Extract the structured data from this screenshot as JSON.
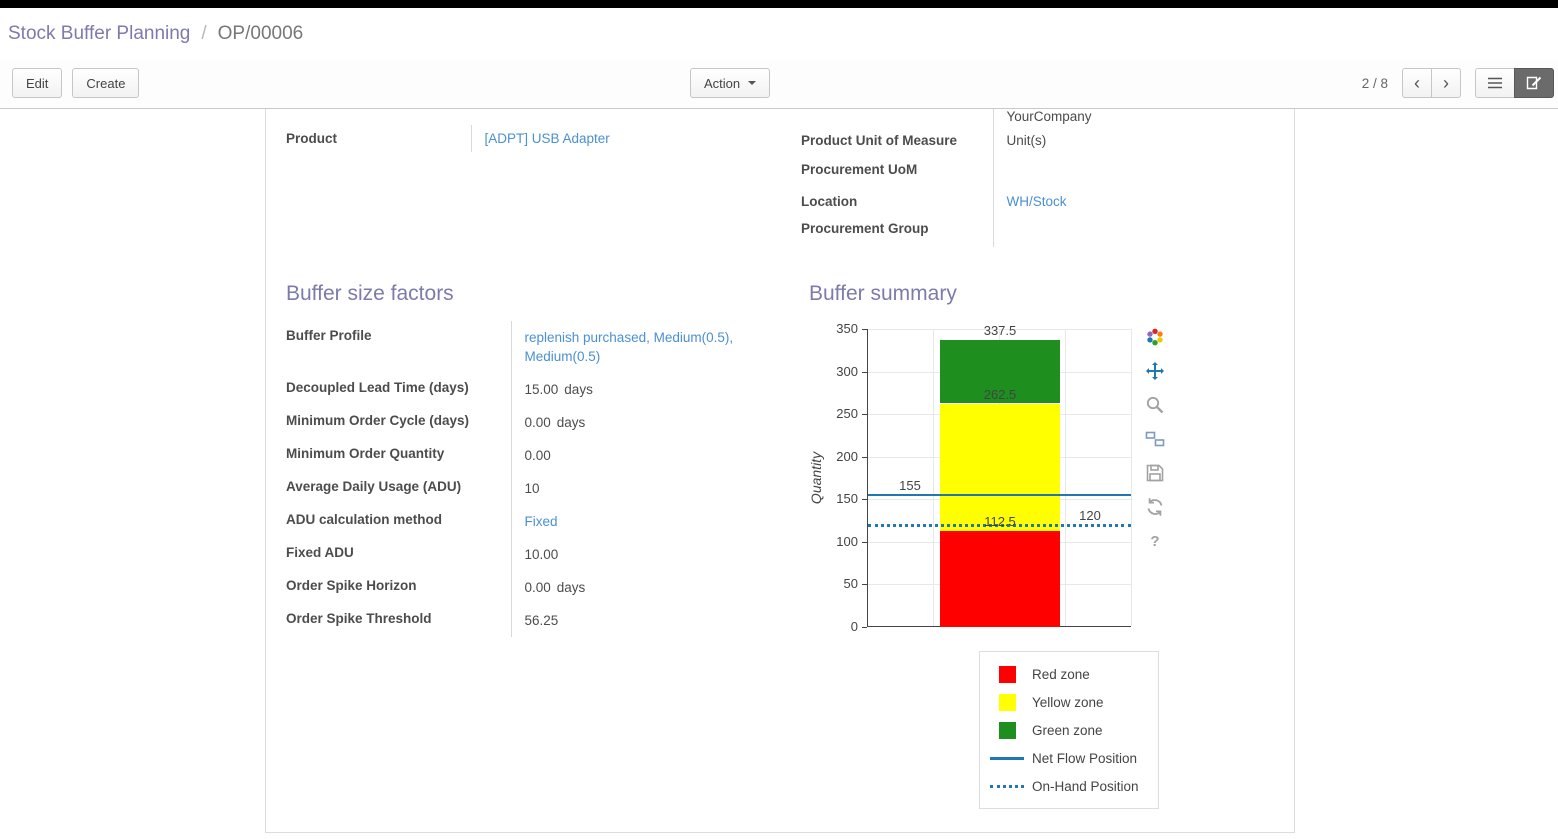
{
  "breadcrumb": {
    "parent": "Stock Buffer Planning",
    "separator": "/",
    "current": "OP/00006"
  },
  "control_panel": {
    "edit": "Edit",
    "create": "Create",
    "action": "Action",
    "pager": "2 / 8",
    "prev_icon": "‹",
    "next_icon": "›"
  },
  "fields": {
    "product": {
      "label": "Product",
      "value": "[ADPT] USB Adapter"
    },
    "warehouse_value": "YourCompany",
    "product_uom": {
      "label": "Product Unit of Measure",
      "value": "Unit(s)"
    },
    "procure_uom": {
      "label": "Procurement UoM",
      "value": ""
    },
    "location": {
      "label": "Location",
      "value": "WH/Stock"
    },
    "procure_group": {
      "label": "Procurement Group",
      "value": ""
    }
  },
  "buffer_factors": {
    "title": "Buffer size factors",
    "rows": [
      {
        "label": "Buffer Profile",
        "value": "replenish purchased, Medium(0.5), Medium(0.5)"
      },
      {
        "label": "Decoupled Lead Time (days)",
        "value": "15.00",
        "suffix": "days"
      },
      {
        "label": "Minimum Order Cycle (days)",
        "value": "0.00",
        "suffix": "days"
      },
      {
        "label": "Minimum Order Quantity",
        "value": "0.00"
      },
      {
        "label": "Average Daily Usage (ADU)",
        "value": "10"
      },
      {
        "label": "ADU calculation method",
        "value": "Fixed"
      },
      {
        "label": "Fixed ADU",
        "value": "10.00"
      },
      {
        "label": "Order Spike Horizon",
        "value": "0.00",
        "suffix": "days"
      },
      {
        "label": "Order Spike Threshold",
        "value": "56.25"
      }
    ]
  },
  "buffer_summary": {
    "title": "Buffer summary"
  },
  "icons": {
    "modebar": [
      "plotly-logo",
      "pan",
      "zoom",
      "compare",
      "save",
      "reset",
      "help"
    ]
  },
  "chart_data": {
    "type": "bar",
    "title": "",
    "xlabel": "",
    "ylabel": "Quantity",
    "ylim": [
      0,
      350
    ],
    "yticks": [
      0,
      50,
      100,
      150,
      200,
      250,
      300,
      350
    ],
    "categories": [
      ""
    ],
    "grid": true,
    "legend_position": "bottom-right",
    "series": [
      {
        "name": "Red zone",
        "color": "#ff0000",
        "values": [
          112.5
        ]
      },
      {
        "name": "Yellow zone",
        "color": "#ffff00",
        "values": [
          150
        ]
      },
      {
        "name": "Green zone",
        "color": "#1e8f1e",
        "values": [
          75
        ]
      }
    ],
    "lines": [
      {
        "name": "Net Flow Position",
        "value": 155,
        "style": "solid",
        "color": "#1f77b4",
        "label": "155",
        "label_x": "left"
      },
      {
        "name": "On-Hand Position",
        "value": 120,
        "style": "dotted",
        "color": "#1f77b4",
        "label": "120",
        "label_x": "right"
      }
    ],
    "annotations": [
      {
        "text": "337.5",
        "y": 337.5,
        "x": "center"
      },
      {
        "text": "262.5",
        "y": 262.5,
        "x": "center"
      },
      {
        "text": "112.5",
        "y": 112.5,
        "x": "center"
      }
    ],
    "legend": [
      {
        "label": "Red zone",
        "swatch": "square",
        "color": "#ff0000"
      },
      {
        "label": "Yellow zone",
        "swatch": "square",
        "color": "#ffff00"
      },
      {
        "label": "Green zone",
        "swatch": "square",
        "color": "#1e8f1e"
      },
      {
        "label": "Net Flow Position",
        "swatch": "line",
        "color": "#1f77b4"
      },
      {
        "label": "On-Hand Position",
        "swatch": "dotted-line",
        "color": "#1f77b4"
      }
    ]
  }
}
